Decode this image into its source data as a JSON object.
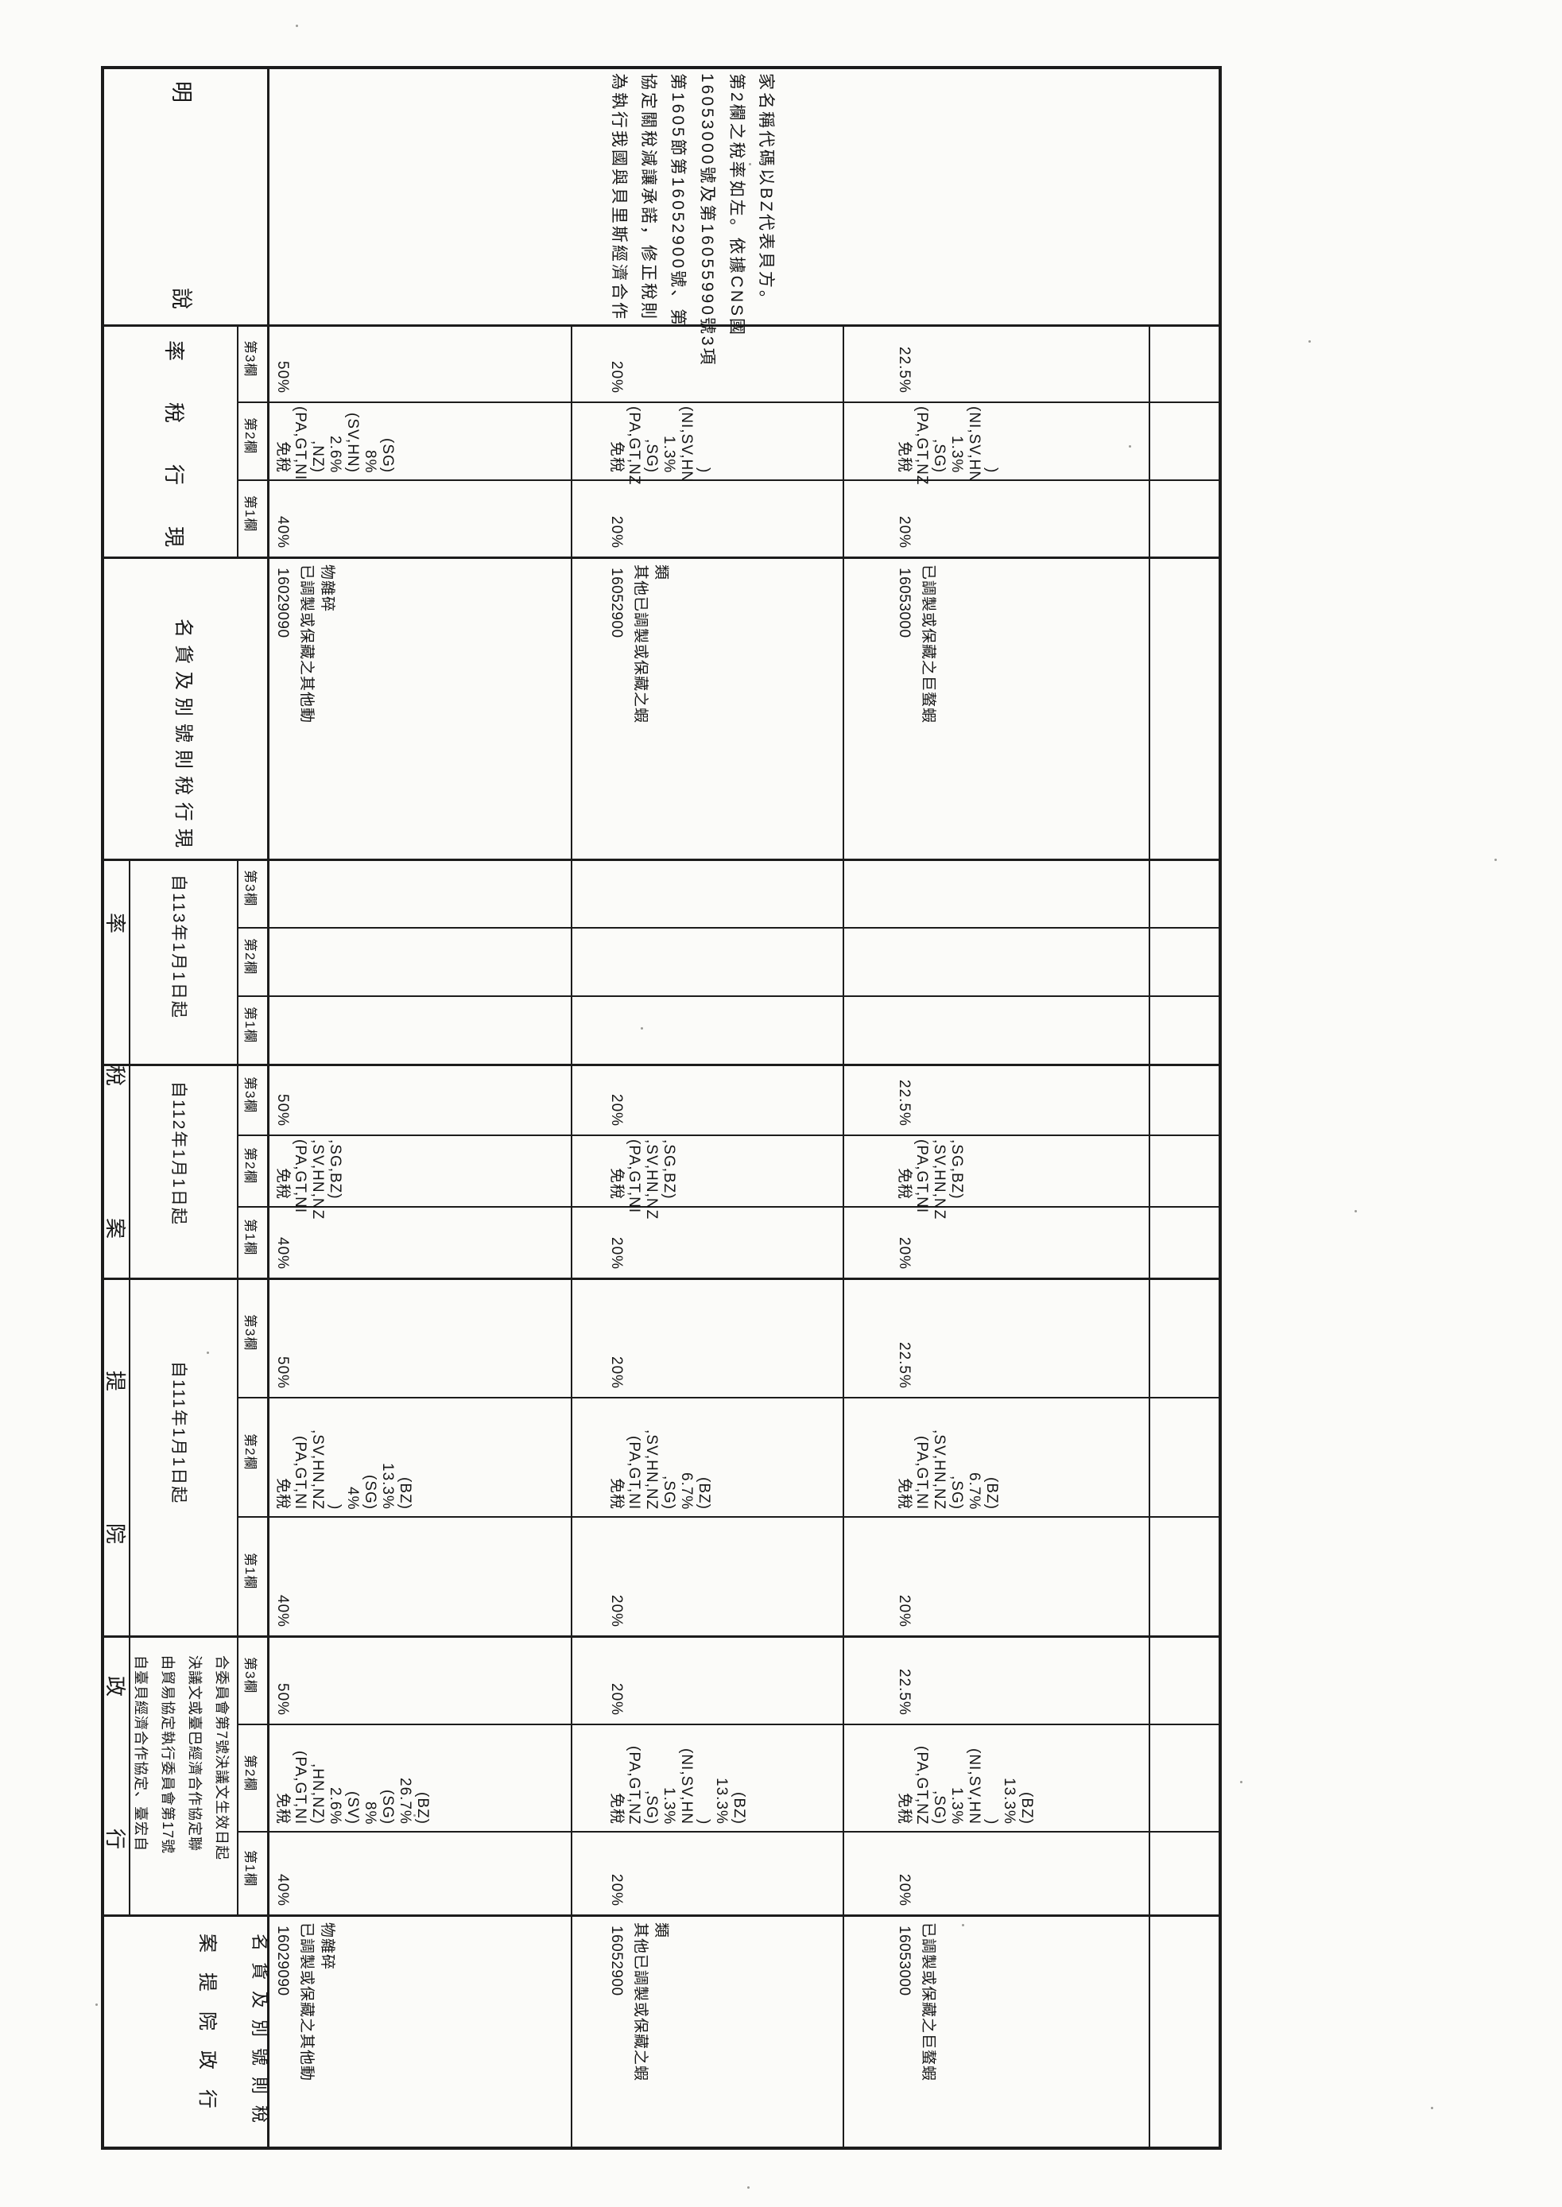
{
  "document": {
    "kind": "scanned tariff amendment comparison table, rotated 90°",
    "ink": "#1c1c1c",
    "paper": "#fbfbf9"
  },
  "headers": {
    "proposal_span": "行政院提案稅率",
    "proposal_col_line1": "行政院提案",
    "proposal_col_line2": "稅則號別及貨名",
    "effective_clause_lines": [
      "自臺貝經濟合作協定、臺宏自",
      "由貿易協定執行委員會第17號",
      "決議文或臺巴經濟合作協定聯",
      "合委員會第7號決議文生效日起"
    ],
    "date_111": "自111年1月1日起",
    "date_112": "自112年1月1日起",
    "date_113": "自113年1月1日起",
    "current_code_col": "現行稅則號別及貨名",
    "current_rate_col": "現行稅率",
    "note_col": "說明",
    "rate_cols": [
      "第1欄",
      "第2欄",
      "第3欄"
    ]
  },
  "note_lines": [
    "為執行我國與貝里斯經濟合作",
    "協定關稅減讓承諾，修正稅則",
    "第1605節第16052900號、第",
    "16053000號及第16055990號3項",
    "第2欄之稅率如左。依據CNS國",
    "家名稱代碼以BZ代表貝方。"
  ],
  "rows": [
    {
      "code": "16029090",
      "desc_lines": [
        "已調製或保藏之其他動",
        "物雜碎"
      ],
      "effective": {
        "c1": "40%",
        "c2": [
          "免稅",
          "(PA,GT,NI",
          ",HN,NZ)",
          "2.6%",
          "(SV)",
          "8%",
          "(SG)",
          "26.7%",
          "(BZ)"
        ],
        "c3": "50%"
      },
      "y111": {
        "c1": "40%",
        "c2": [
          "免稅",
          "(PA,GT,NI",
          ",SV,HN,NZ",
          ")",
          "4%",
          "(SG)",
          "13.3%",
          "(BZ)"
        ],
        "c3": "50%"
      },
      "y112": {
        "c1": "40%",
        "c2": [
          "免稅",
          "(PA,GT,NI",
          ",SV,HN,NZ",
          ",SG,BZ)"
        ],
        "c3": "50%"
      },
      "y113": {
        "c1": "",
        "c2": [],
        "c3": ""
      },
      "current": {
        "c1": "40%",
        "c2": [
          "免稅",
          "(PA,GT,NI",
          ",NZ)",
          "2.6%",
          "(SV,HN)",
          "8%",
          "(SG)"
        ],
        "c3": "50%"
      }
    },
    {
      "code": "16052900",
      "desc_lines": [
        "其他已調製或保藏之蝦",
        "類"
      ],
      "effective": {
        "c1": "20%",
        "c2": [
          "免稅",
          "(PA,GT,NZ",
          ",SG)",
          "1.3%",
          "(NI,SV,HN",
          ")",
          "13.3%",
          "(BZ)"
        ],
        "c3": "20%"
      },
      "y111": {
        "c1": "20%",
        "c2": [
          "免稅",
          "(PA,GT,NI",
          ",SV,HN,NZ",
          ",SG)",
          "6.7%",
          "(BZ)"
        ],
        "c3": "20%"
      },
      "y112": {
        "c1": "20%",
        "c2": [
          "免稅",
          "(PA,GT,NI",
          ",SV,HN,NZ",
          ",SG,BZ)"
        ],
        "c3": "20%"
      },
      "y113": {
        "c1": "",
        "c2": [],
        "c3": ""
      },
      "current": {
        "c1": "20%",
        "c2": [
          "免稅",
          "(PA,GT,NZ",
          ",SG)",
          "1.3%",
          "(NI,SV,HN",
          ")"
        ],
        "c3": "20%"
      }
    },
    {
      "code": "16053000",
      "desc_lines": [
        "已調製或保藏之巨螯蝦"
      ],
      "effective": {
        "c1": "20%",
        "c2": [
          "免稅",
          "(PA,GT,NZ",
          ",SG)",
          "1.3%",
          "(NI,SV,HN",
          ")",
          "13.3%",
          "(BZ)"
        ],
        "c3": "22.5%"
      },
      "y111": {
        "c1": "20%",
        "c2": [
          "免稅",
          "(PA,GT,NI",
          ",SV,HN,NZ",
          ",SG)",
          "6.7%",
          "(BZ)"
        ],
        "c3": "22.5%"
      },
      "y112": {
        "c1": "20%",
        "c2": [
          "免稅",
          "(PA,GT,NI",
          ",SV,HN,NZ",
          ",SG,BZ)"
        ],
        "c3": "22.5%"
      },
      "y113": {
        "c1": "",
        "c2": [],
        "c3": ""
      },
      "current": {
        "c1": "20%",
        "c2": [
          "免稅",
          "(PA,GT,NZ",
          ",SG)",
          "1.3%",
          "(NI,SV,HN",
          ")"
        ],
        "c3": "22.5%"
      }
    }
  ]
}
